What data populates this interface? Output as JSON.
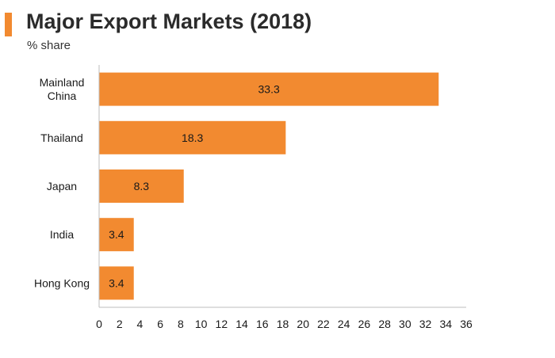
{
  "header": {
    "title": "Major Export Markets (2018)",
    "subtitle": "% share"
  },
  "colors": {
    "accent": "#f28a30",
    "bar": "#f28a30",
    "axis": "#bdbdbd",
    "text": "#1a1a1a"
  },
  "chart_data": {
    "type": "bar",
    "orientation": "horizontal",
    "title": "Major Export Markets (2018)",
    "subtitle": "% share",
    "categories": [
      [
        "Mainland",
        "China"
      ],
      [
        "Thailand"
      ],
      [
        "Japan"
      ],
      [
        "India"
      ],
      [
        "Hong Kong"
      ]
    ],
    "values": [
      33.3,
      18.3,
      8.3,
      3.4,
      3.4
    ],
    "value_labels": [
      "33.3",
      "18.3",
      "8.3",
      "3.4",
      "3.4"
    ],
    "xlim": [
      0,
      36
    ],
    "xticks": [
      0,
      2,
      4,
      6,
      8,
      10,
      12,
      14,
      16,
      18,
      20,
      22,
      24,
      26,
      28,
      30,
      32,
      34,
      36
    ],
    "xlabel": "",
    "ylabel": "",
    "grid": false,
    "legend": "none"
  }
}
